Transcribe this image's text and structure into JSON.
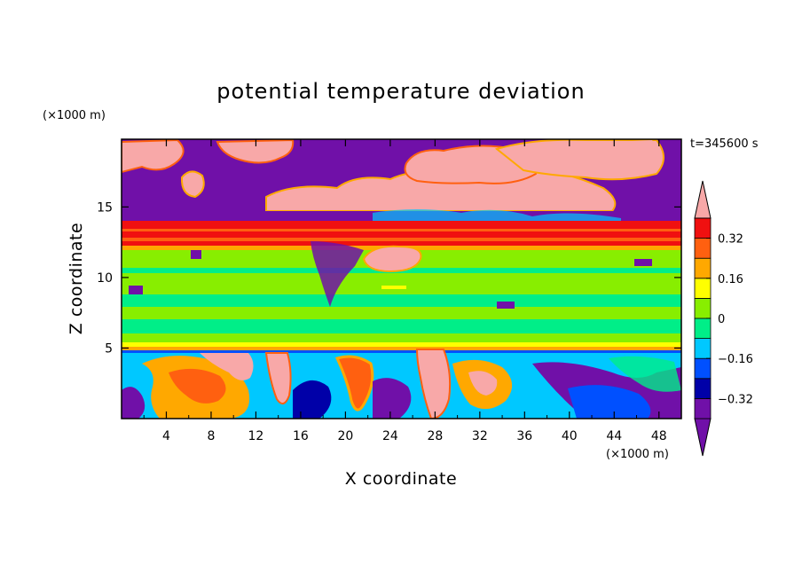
{
  "chart_data": {
    "type": "heatmap",
    "title": "potential temperature deviation",
    "xlabel": "X coordinate",
    "ylabel": "Z coordinate",
    "x_unit": "(×1000 m)",
    "y_unit": "(×1000 m)",
    "time_label": "t=345600 s",
    "xlim": [
      0,
      50
    ],
    "ylim": [
      0,
      19.8
    ],
    "x_ticks": [
      4,
      8,
      12,
      16,
      20,
      24,
      28,
      32,
      36,
      40,
      44,
      48
    ],
    "y_ticks": [
      5,
      10,
      15
    ],
    "colorbar": {
      "levels": [
        -0.4,
        -0.32,
        -0.24,
        -0.16,
        -0.08,
        0,
        0.08,
        0.16,
        0.24,
        0.32,
        0.4
      ],
      "tick_values": [
        0.32,
        0.16,
        0,
        -0.16,
        -0.32
      ],
      "tick_labels": [
        "0.32",
        "0.16",
        "0",
        "−0.16",
        "−0.32"
      ],
      "colors": [
        "#7010a8",
        "#0000a8",
        "#0050ff",
        "#00c8ff",
        "#00ee88",
        "#88ee00",
        "#ffff00",
        "#ffa800",
        "#ff6010",
        "#f01010",
        "#f8a8a8"
      ]
    },
    "layers": [
      {
        "z_range": [
          14,
          19.8
        ],
        "description_value": "alternating -0.4 and +0.4 extremes"
      },
      {
        "z_range": [
          12.5,
          14
        ],
        "value": 0.32
      },
      {
        "z_range": [
          5.5,
          12.5
        ],
        "value": 0.04
      },
      {
        "z_range": [
          5.2,
          5.5
        ],
        "value": 0.2
      },
      {
        "z_range": [
          0,
          5.2
        ],
        "description_value": "turbulent mixed values from -0.4 to 0.4"
      }
    ]
  }
}
